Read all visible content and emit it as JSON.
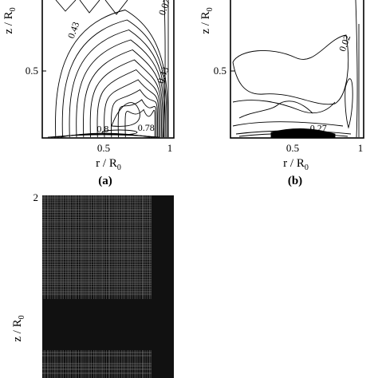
{
  "chart_data": [
    {
      "panel": "a",
      "type": "contour",
      "xlabel": "r / R",
      "xlabel_sub": "0",
      "ylabel": "z / R",
      "ylabel_sub": "0",
      "xticks": [
        "0.5",
        "1"
      ],
      "yticks": [
        "0.5"
      ],
      "xlim": [
        0,
        1
      ],
      "ylim_visible": [
        0.1,
        1.1
      ],
      "contour_labels": [
        {
          "text": "0.07",
          "r": 0.95,
          "z": 0.99
        },
        {
          "text": "0.43",
          "r": 0.26,
          "z": 0.83
        },
        {
          "text": "0.43",
          "r": 0.94,
          "z": 0.52
        },
        {
          "text": "0.78",
          "r": 0.79,
          "z": 0.145
        },
        {
          "text": "0.8",
          "r": 0.46,
          "z": 0.135
        }
      ],
      "caption": "(a)"
    },
    {
      "panel": "b",
      "type": "contour",
      "xlabel": "r / R",
      "xlabel_sub": "0",
      "ylabel": "z / R",
      "ylabel_sub": "0",
      "xticks": [
        "0.5",
        "1"
      ],
      "yticks": [
        "0.5"
      ],
      "xlim": [
        0,
        1
      ],
      "ylim_visible": [
        0.1,
        1.1
      ],
      "contour_labels": [
        {
          "text": "0.02",
          "r": 0.88,
          "z": 0.74
        },
        {
          "text": "0.27",
          "r": 0.66,
          "z": 0.14
        }
      ],
      "caption": "(b)"
    },
    {
      "panel": "c",
      "type": "heatmap",
      "description_free": true,
      "ylabel": "z / R",
      "ylabel_sub": "0",
      "yticks": [
        "2"
      ]
    }
  ],
  "colors": {
    "lines": "#000000",
    "mesh": "#111111",
    "background": "#ffffff"
  }
}
